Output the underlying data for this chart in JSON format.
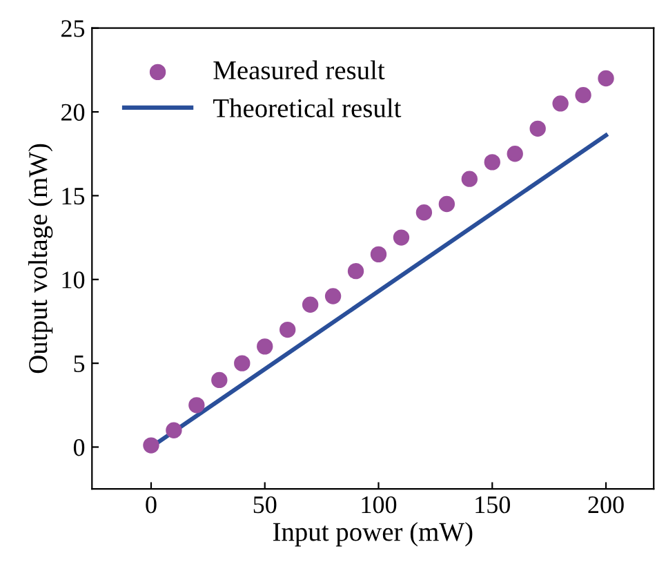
{
  "chart_data": {
    "type": "scatter",
    "xlabel": "Input power (mW)",
    "ylabel": "Output voltage (mW)",
    "xlim": [
      -26,
      221
    ],
    "ylim": [
      -2.5,
      25
    ],
    "xticks": [
      0,
      50,
      100,
      150,
      200
    ],
    "yticks": [
      0,
      5,
      10,
      15,
      20,
      25
    ],
    "grid": false,
    "legend": "top left",
    "series": [
      {
        "name": "Measured result",
        "marker": "circle",
        "color": "#9b4f9e",
        "x": [
          0,
          10,
          20,
          30,
          40,
          50,
          60,
          70,
          80,
          90,
          100,
          110,
          120,
          130,
          140,
          150,
          160,
          170,
          180,
          190,
          200
        ],
        "values": [
          0.1,
          1,
          2.5,
          4,
          5,
          6,
          7,
          8.5,
          9,
          10.5,
          11.5,
          12.5,
          14,
          14.5,
          16,
          17,
          17.5,
          19,
          20.5,
          21,
          22
        ]
      },
      {
        "name": "Theoretical result",
        "type": "line",
        "line_style": "solid",
        "color": "#2a4f9a",
        "x": [
          0,
          200
        ],
        "values": [
          0,
          18.6
        ]
      }
    ]
  }
}
